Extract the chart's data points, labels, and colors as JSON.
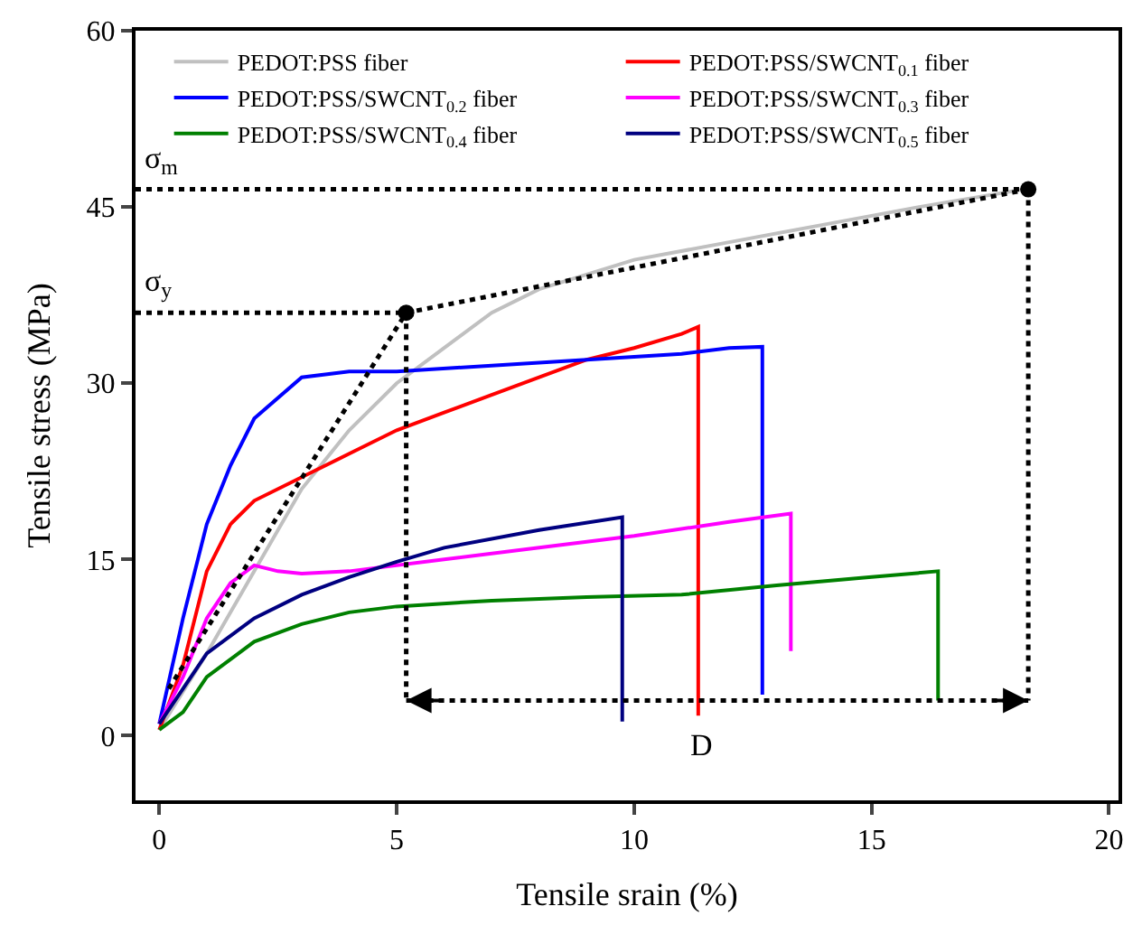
{
  "chart_data": {
    "type": "line",
    "xlabel": "Tensile srain (%)",
    "ylabel": "Tensile stress (MPa)",
    "xlim": [
      -0.5,
      20.2
    ],
    "ylim": [
      -5.5,
      60
    ],
    "xticks": [
      0,
      5,
      10,
      15,
      20
    ],
    "yticks": [
      0,
      15,
      30,
      45,
      60
    ],
    "legend": "top",
    "line_style": "solid",
    "marker": "none",
    "series": [
      {
        "name": "PEDOT:PSS fiber",
        "color": "#c0c0c0",
        "x": [
          0,
          1,
          2,
          3,
          4,
          5,
          6,
          7,
          8,
          10,
          12,
          14,
          16,
          18.2
        ],
        "values": [
          0.5,
          7,
          14,
          21,
          26,
          30,
          33,
          36,
          38,
          40.5,
          42,
          43.5,
          45,
          46.5
        ]
      },
      {
        "name": "PEDOT:PSS/SWCNT$_{0.1}$ fiber",
        "color": "#ff0000",
        "x": [
          0,
          0.5,
          1,
          1.5,
          2,
          3,
          4,
          5,
          6,
          7,
          8,
          9,
          10,
          11,
          11.35,
          11.35
        ],
        "values": [
          0.5,
          6,
          14,
          18,
          20,
          22,
          24,
          26,
          27.5,
          29,
          30.5,
          32,
          33,
          34.2,
          34.8,
          1.7
        ]
      },
      {
        "name": "PEDOT:PSS/SWCNT$_{0.2}$ fiber",
        "color": "#0000ff",
        "x": [
          0,
          0.5,
          1,
          1.5,
          2,
          3,
          4,
          5,
          7,
          9,
          11,
          12,
          12.7,
          12.7
        ],
        "values": [
          1,
          10,
          18,
          23,
          27,
          30.5,
          31,
          31,
          31.5,
          32,
          32.5,
          33,
          33.1,
          3.5
        ]
      },
      {
        "name": "PEDOT:PSS/SWCNT$_{0.3}$ fiber",
        "color": "#ff00ff",
        "x": [
          0,
          0.5,
          1,
          1.5,
          2,
          2.5,
          3,
          4,
          6,
          8,
          10,
          12,
          13.3,
          13.3
        ],
        "values": [
          1,
          5,
          10,
          13,
          14.5,
          14,
          13.8,
          14,
          15,
          16,
          17,
          18.2,
          18.9,
          7.2
        ]
      },
      {
        "name": "PEDOT:PSS/SWCNT$_{0.4}$ fiber",
        "color": "#008000",
        "x": [
          0,
          0.5,
          1,
          2,
          3,
          4,
          5,
          7,
          9,
          11,
          13,
          15,
          16.4,
          16.4
        ],
        "values": [
          0.5,
          2,
          5,
          8,
          9.5,
          10.5,
          11,
          11.5,
          11.8,
          12,
          12.8,
          13.5,
          14,
          3
        ]
      },
      {
        "name": "PEDOT:PSS/SWCNT$_{0.5}$ fiber",
        "color": "#000080",
        "x": [
          0,
          0.5,
          1,
          2,
          3,
          4,
          5,
          6,
          8,
          9.75,
          9.75
        ],
        "values": [
          1,
          4,
          7,
          10,
          12,
          13.5,
          14.8,
          16,
          17.5,
          18.6,
          1.2
        ]
      },
      {
        "color": "#000000",
        "line_style": "dotted",
        "x": [
          -0.5,
          5.2
        ],
        "values": [
          36,
          36
        ]
      },
      {
        "color": "#000000",
        "line_style": "dotted",
        "x": [
          -0.5,
          18.3
        ],
        "values": [
          46.5,
          46.5
        ]
      },
      {
        "color": "#000000",
        "line_style": "dotted",
        "x": [
          0.2,
          5.2,
          18.3
        ],
        "values": [
          4,
          36,
          46.5
        ]
      },
      {
        "color": "#000000",
        "line_style": "dotted",
        "x": [
          5.2,
          5.2
        ],
        "values": [
          36,
          3
        ]
      },
      {
        "color": "#000000",
        "line_style": "dotted",
        "x": [
          18.3,
          18.3
        ],
        "values": [
          46.5,
          3
        ]
      },
      {
        "color": "#000000",
        "type": "scatter",
        "marker": "circle",
        "x": [
          5.2,
          18.3
        ],
        "values": [
          36,
          46.5
        ]
      }
    ],
    "annotations": [
      "σ$_{m}$",
      "σ$_{y}$",
      "D"
    ]
  }
}
